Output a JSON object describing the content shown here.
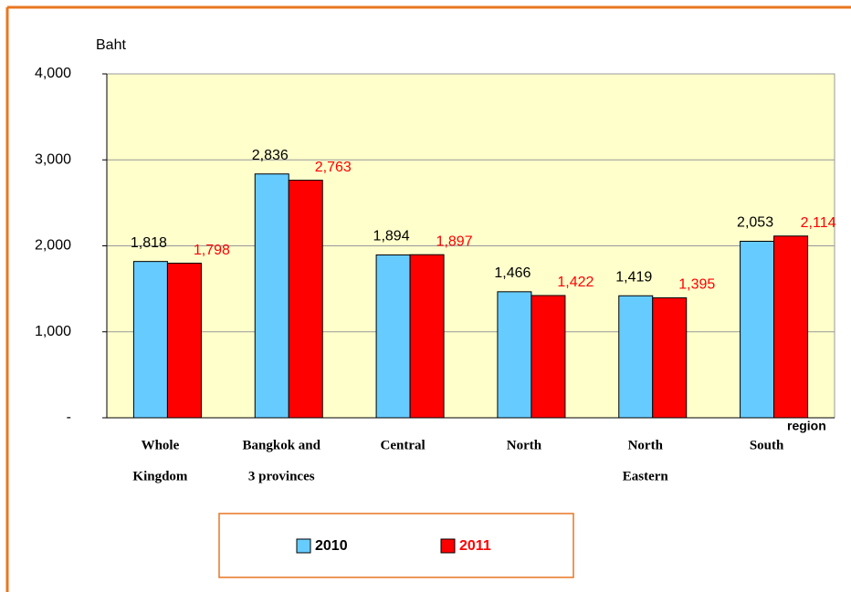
{
  "chart_data": {
    "type": "bar",
    "y_axis_label": "Baht",
    "x_axis_label": "region",
    "categories": [
      [
        "Whole",
        "Kingdom"
      ],
      [
        "Bangkok and",
        "3 provinces"
      ],
      [
        "Central"
      ],
      [
        "North"
      ],
      [
        "North",
        "Eastern"
      ],
      [
        "South"
      ]
    ],
    "series": [
      {
        "name": "2010",
        "color": "#66ccff",
        "values": [
          1818,
          2836,
          1894,
          1466,
          1419,
          2053
        ],
        "value_labels": [
          "1,818",
          "2,836",
          "1,894",
          "1,466",
          "1,419",
          "2,053"
        ],
        "label_color": "#000000"
      },
      {
        "name": "2011",
        "color": "#ff0000",
        "values": [
          1798,
          2763,
          1897,
          1422,
          1395,
          2114
        ],
        "value_labels": [
          "1,798",
          "2,763",
          "1,897",
          "1,422",
          "1,395",
          "2,114"
        ],
        "label_color": "#ff0000"
      }
    ],
    "ylim": [
      0,
      4000
    ],
    "yticks": [
      {
        "value": 0,
        "label": "-"
      },
      {
        "value": 1000,
        "label": "1,000"
      },
      {
        "value": 2000,
        "label": "2,000"
      },
      {
        "value": 3000,
        "label": "3,000"
      },
      {
        "value": 4000,
        "label": "4,000"
      }
    ],
    "grid": true,
    "plot_background": "#ffffcc"
  }
}
